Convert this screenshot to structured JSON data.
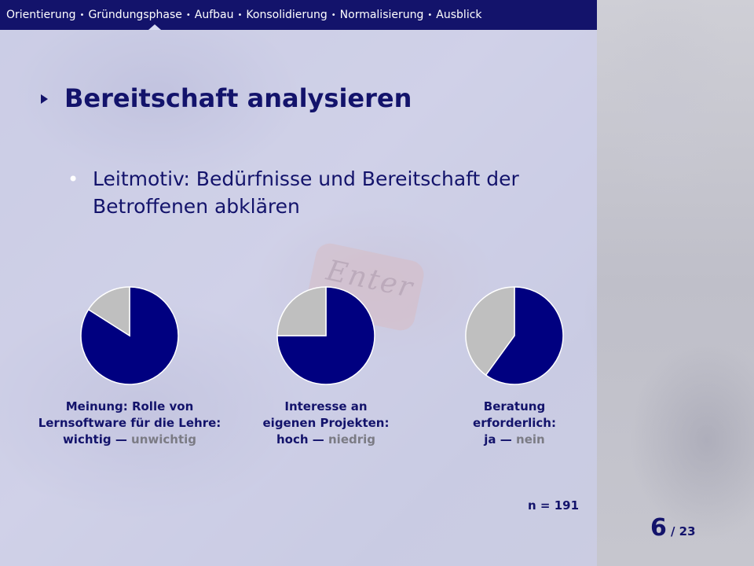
{
  "nav": {
    "items": [
      "Orientierung",
      "Gründungsphase",
      "Aufbau",
      "Konsolidierung",
      "Normalisierung",
      "Ausblick"
    ],
    "separator": "•",
    "active_index": 1
  },
  "slide": {
    "title": "Bereitschaft analysieren",
    "bullet": "Leitmotiv: Bedürfnisse und Bereitschaft der Betroffenen abklären",
    "background_text": "Enter",
    "sample_size": "n = 191",
    "page_current": "6",
    "page_total": "/ 23"
  },
  "colors": {
    "positive": "#000080",
    "negative": "#bfbfbf",
    "nav_bg": "#13136b",
    "text": "#13136b"
  },
  "chart_data": [
    {
      "type": "pie",
      "caption_lines": [
        "Meinung: Rolle von",
        "Lernsoftware für die Lehre:"
      ],
      "positive_label": "wichtig",
      "dash": "—",
      "negative_label": "unwichtig",
      "values": [
        0.84,
        0.16
      ]
    },
    {
      "type": "pie",
      "caption_lines": [
        "Interesse an",
        "eigenen Projekten:"
      ],
      "positive_label": "hoch",
      "dash": "—",
      "negative_label": "niedrig",
      "values": [
        0.75,
        0.25
      ]
    },
    {
      "type": "pie",
      "caption_lines": [
        "Beratung",
        "erforderlich:"
      ],
      "positive_label": "ja",
      "dash": "—",
      "negative_label": "nein",
      "values": [
        0.6,
        0.4
      ]
    }
  ]
}
